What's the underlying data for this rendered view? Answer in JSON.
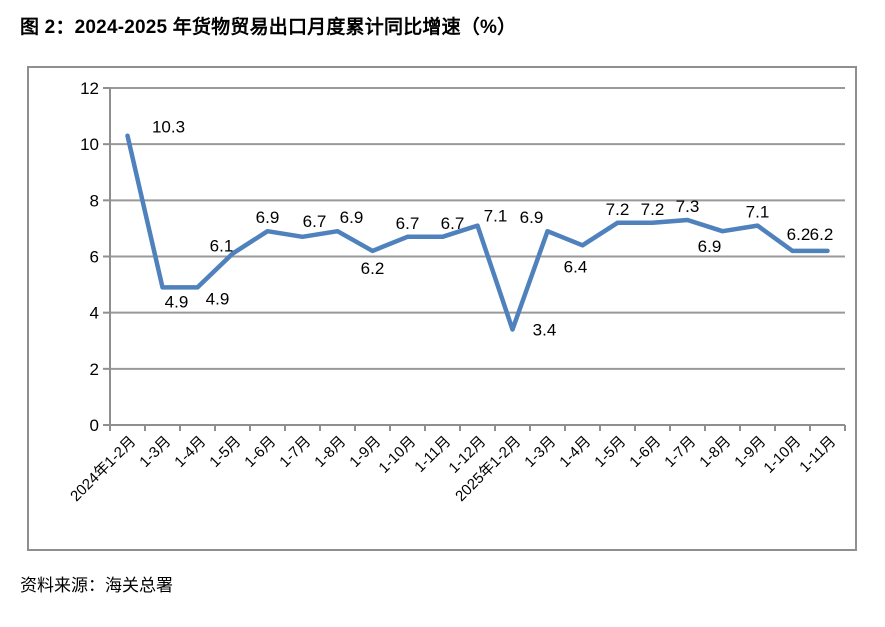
{
  "page": {
    "title": "图 2：2024-2025 年货物贸易出口月度累计同比增速（%）",
    "source_note": "资料来源：海关总署"
  },
  "chart_data": {
    "type": "line",
    "title": "图 2：2024-2025 年货物贸易出口月度累计同比增速（%）",
    "categories": [
      "2024年1-2月",
      "1-3月",
      "1-4月",
      "1-5月",
      "1-6月",
      "1-7月",
      "1-8月",
      "1-9月",
      "1-10月",
      "1-11月",
      "1-12月",
      "2025年1-2月",
      "1-3月",
      "1-4月",
      "1-5月",
      "1-6月",
      "1-7月",
      "1-8月",
      "1-9月",
      "1-10月",
      "1-11月"
    ],
    "values": [
      10.3,
      4.9,
      4.9,
      6.1,
      6.9,
      6.7,
      6.9,
      6.2,
      6.7,
      6.7,
      7.1,
      3.4,
      6.9,
      6.4,
      7.2,
      7.2,
      7.3,
      6.9,
      7.1,
      6.2,
      6.2
    ],
    "xlabel": "",
    "ylabel": "",
    "ylim": [
      0,
      12
    ],
    "yticks": [
      0,
      2,
      4,
      6,
      8,
      10,
      12
    ],
    "grid": true,
    "legend_position": "none",
    "data_labels": true,
    "label_sides": [
      "above",
      "below",
      "below",
      "above",
      "above",
      "above",
      "above",
      "below",
      "above",
      "above",
      "above",
      "right",
      "above",
      "below",
      "above",
      "above",
      "above",
      "below",
      "above",
      "above",
      "above"
    ],
    "label_offsets": {
      "0": [
        41,
        -9
      ],
      "1": [
        14,
        14
      ],
      "2": [
        20,
        11
      ],
      "3": [
        -11,
        -8
      ],
      "5": [
        12,
        -16
      ],
      "6": [
        14,
        -14
      ],
      "9": [
        10,
        -14
      ],
      "10": [
        18,
        -10
      ],
      "11": [
        32,
        0
      ],
      "12": [
        -16,
        -14
      ],
      "13": [
        -7,
        21
      ],
      "17": [
        -13,
        15
      ],
      "19": [
        6,
        -17
      ],
      "20": [
        -6,
        -17
      ]
    },
    "line_color": "#4F81BD",
    "grid_color": "#999999",
    "axis_color": "#8f8f8f",
    "text_color": "#000000"
  }
}
